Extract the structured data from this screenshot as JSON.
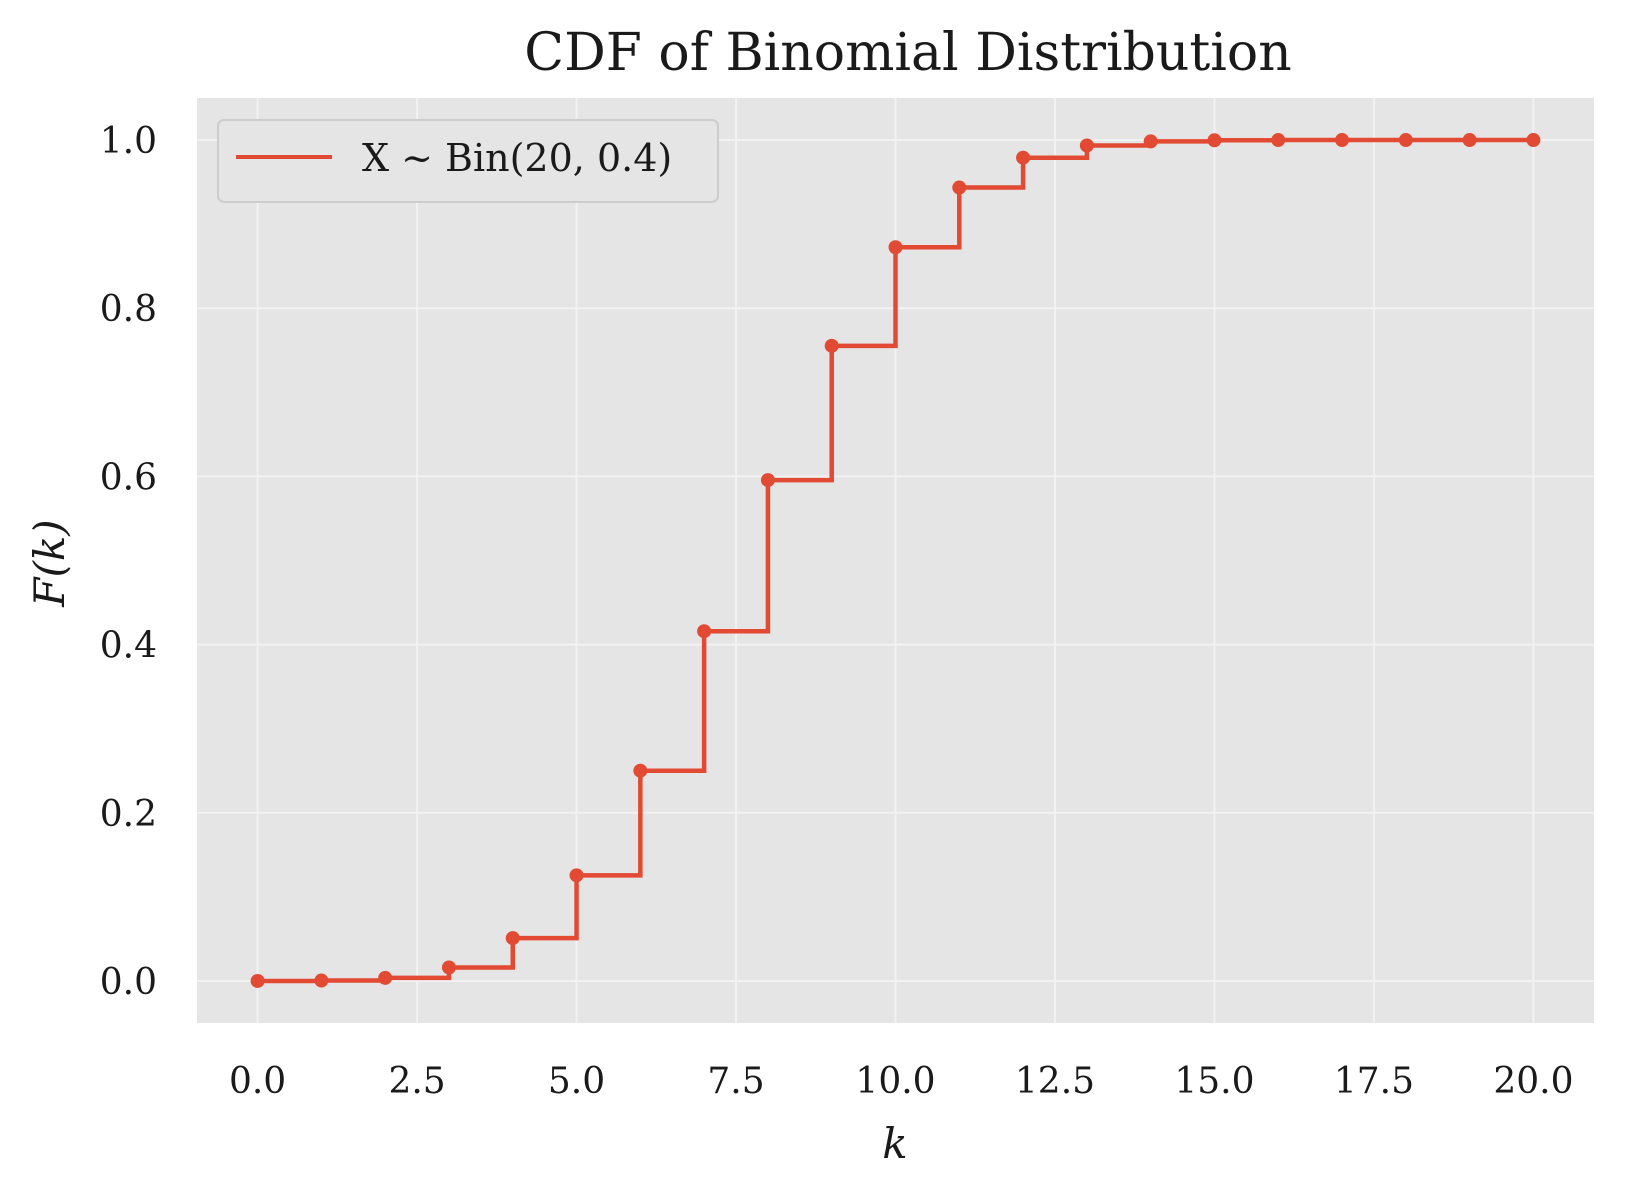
{
  "chart_data": {
    "type": "line",
    "step": "post",
    "title": "CDF of Binomial Distribution",
    "xlabel": "k",
    "ylabel": "F(k)",
    "xlim": [
      -0.95,
      20.95
    ],
    "ylim": [
      -0.05,
      1.05
    ],
    "xticks": [
      0,
      2.5,
      5,
      7.5,
      10,
      12.5,
      15,
      17.5,
      20
    ],
    "xtick_labels": [
      "0.0",
      "2.5",
      "5.0",
      "7.5",
      "10.0",
      "12.5",
      "15.0",
      "17.5",
      "20.0"
    ],
    "yticks": [
      0,
      0.2,
      0.4,
      0.6,
      0.8,
      1.0
    ],
    "ytick_labels": [
      "0.0",
      "0.2",
      "0.4",
      "0.6",
      "0.8",
      "1.0"
    ],
    "grid": true,
    "legend_position": "top-left",
    "series": [
      {
        "name": "X ~ Bin(20, 0.4)",
        "color": "#E24A33",
        "x": [
          0,
          1,
          2,
          3,
          4,
          5,
          6,
          7,
          8,
          9,
          10,
          11,
          12,
          13,
          14,
          15,
          16,
          17,
          18,
          19,
          20
        ],
        "y": [
          0.0,
          0.0005,
          0.0036,
          0.016,
          0.051,
          0.1256,
          0.25,
          0.4159,
          0.5956,
          0.7553,
          0.8725,
          0.9435,
          0.979,
          0.9935,
          0.9984,
          0.9997,
          1.0,
          1.0,
          1.0,
          1.0,
          1.0
        ]
      }
    ]
  },
  "colors": {
    "plot_background": "#E5E5E5",
    "grid": "#F2F2F2",
    "series": "#E24A33"
  }
}
